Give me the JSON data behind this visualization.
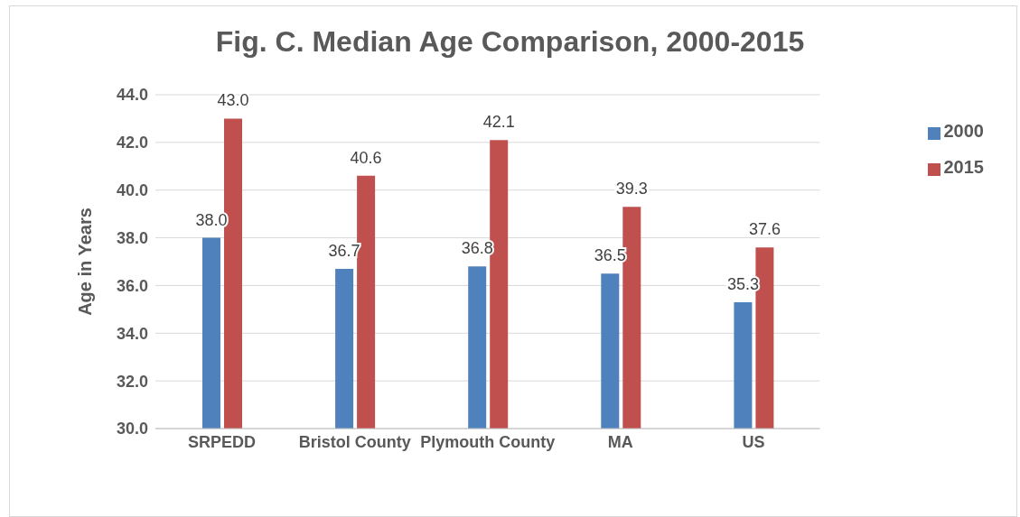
{
  "chart_data": {
    "type": "bar",
    "title": "Fig. C. Median Age Comparison, 2000-2015",
    "ylabel": "Age in Years",
    "categories": [
      "SRPEDD",
      "Bristol County",
      "Plymouth County",
      "MA",
      "US"
    ],
    "series": [
      {
        "name": "2000",
        "color": "#4f81bd",
        "values": [
          38.0,
          36.7,
          36.8,
          36.5,
          35.3
        ],
        "value_labels": [
          "38.0",
          "36.7",
          "36.8",
          "36.5",
          "35.3"
        ]
      },
      {
        "name": "2015",
        "color": "#c0504d",
        "values": [
          43.0,
          40.6,
          42.1,
          39.3,
          37.6
        ],
        "value_labels": [
          "43.0",
          "40.6",
          "42.1",
          "39.3",
          "37.6"
        ]
      }
    ],
    "ylim": [
      30,
      44
    ],
    "yticks": [
      {
        "value": 30,
        "label": "30.0"
      },
      {
        "value": 32,
        "label": "32.0"
      },
      {
        "value": 34,
        "label": "34.0"
      },
      {
        "value": 36,
        "label": "36.0"
      },
      {
        "value": 38,
        "label": "38.0"
      },
      {
        "value": 40,
        "label": "40.0"
      },
      {
        "value": 42,
        "label": "42.0"
      },
      {
        "value": 44,
        "label": "44.0"
      }
    ],
    "grid": "y",
    "legend": "right"
  }
}
